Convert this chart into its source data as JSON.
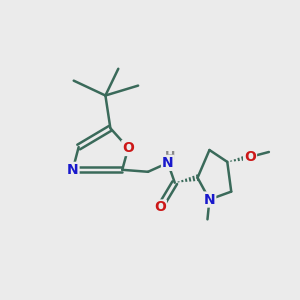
{
  "background_color": "#ebebeb",
  "bond_color": "#3a6a5a",
  "bond_width": 1.8,
  "atom_colors": {
    "N": "#1818cc",
    "O": "#cc1818",
    "C": "#3a6a5a",
    "H": "#888888"
  },
  "figure_size": [
    3.0,
    3.0
  ],
  "dpi": 100,
  "xlim": [
    0,
    10
  ],
  "ylim": [
    0,
    10
  ]
}
